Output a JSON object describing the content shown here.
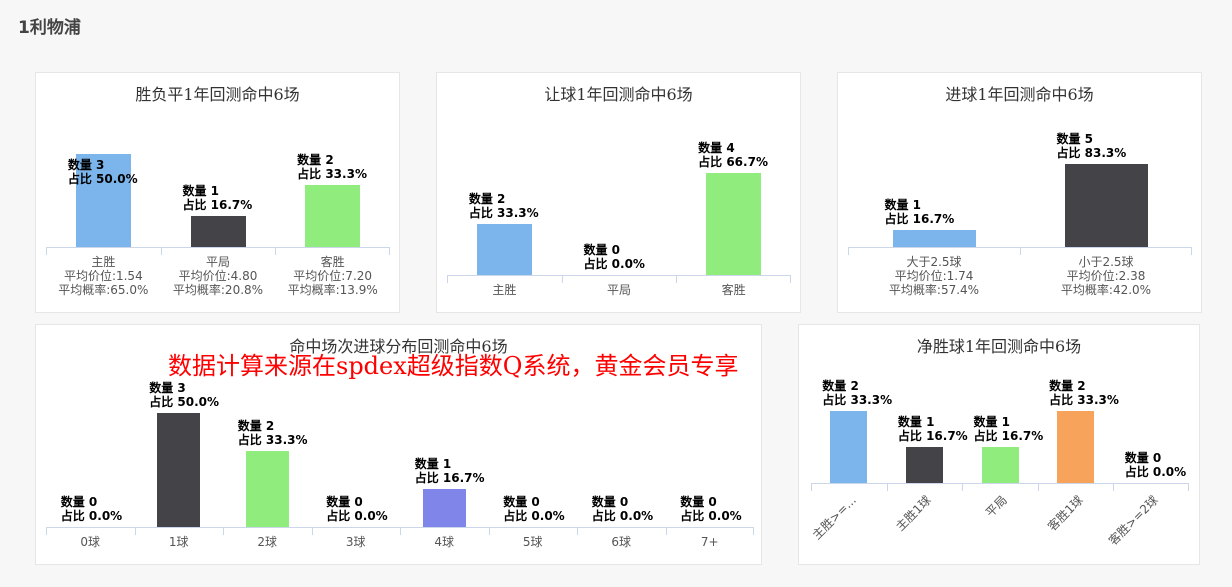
{
  "page": {
    "title": "1利物浦"
  },
  "watermark": "数据计算来源在spdex超级指数Q系统，黄金会员专享",
  "colors": {
    "blue": "#7cb5ec",
    "dark": "#434348",
    "green": "#90ed7d",
    "orange": "#f7a35c",
    "purple": "#8085e9"
  },
  "chart_data": [
    {
      "type": "bar",
      "title": "胜负平1年回测命中6场",
      "categories": [
        "主胜",
        "平局",
        "客胜"
      ],
      "values": [
        3,
        1,
        2
      ],
      "percent": [
        "50.0%",
        "16.7%",
        "33.3%"
      ],
      "avg_odds": [
        "1.54",
        "4.80",
        "7.20"
      ],
      "avg_prob": [
        "65.0%",
        "20.8%",
        "13.9%"
      ],
      "colors": [
        "#7cb5ec",
        "#434348",
        "#90ed7d"
      ]
    },
    {
      "type": "bar",
      "title": "让球1年回测命中6场",
      "categories": [
        "主胜",
        "平局",
        "客胜"
      ],
      "values": [
        2,
        0,
        4
      ],
      "percent": [
        "33.3%",
        "0.0%",
        "66.7%"
      ],
      "colors": [
        "#7cb5ec",
        "#434348",
        "#90ed7d"
      ]
    },
    {
      "type": "bar",
      "title": "进球1年回测命中6场",
      "categories": [
        "大于2.5球",
        "小于2.5球"
      ],
      "values": [
        1,
        5
      ],
      "percent": [
        "16.7%",
        "83.3%"
      ],
      "avg_odds": [
        "1.74",
        "2.38"
      ],
      "avg_prob": [
        "57.4%",
        "42.0%"
      ],
      "colors": [
        "#7cb5ec",
        "#434348"
      ]
    },
    {
      "type": "bar",
      "title": "命中场次进球分布回测命中6场",
      "categories": [
        "0球",
        "1球",
        "2球",
        "3球",
        "4球",
        "5球",
        "6球",
        "7+"
      ],
      "values": [
        0,
        3,
        2,
        0,
        1,
        0,
        0,
        0
      ],
      "percent": [
        "0.0%",
        "50.0%",
        "33.3%",
        "0.0%",
        "16.7%",
        "0.0%",
        "0.0%",
        "0.0%"
      ],
      "colors": [
        "#7cb5ec",
        "#434348",
        "#90ed7d",
        "#f7a35c",
        "#8085e9",
        "#f15c80",
        "#e4d354",
        "#2b908f"
      ]
    },
    {
      "type": "bar",
      "title": "净胜球1年回测命中6场",
      "categories": [
        "主胜>=...",
        "主胜1球",
        "平局",
        "客胜1球",
        "客胜>=2球"
      ],
      "values": [
        2,
        1,
        1,
        2,
        0
      ],
      "percent": [
        "33.3%",
        "16.7%",
        "16.7%",
        "33.3%",
        "0.0%"
      ],
      "colors": [
        "#7cb5ec",
        "#434348",
        "#90ed7d",
        "#f7a35c",
        "#8085e9"
      ]
    }
  ],
  "labels": {
    "count": "数量",
    "share": "占比",
    "avg_odds": "平均价位:",
    "avg_prob": "平均概率:"
  }
}
